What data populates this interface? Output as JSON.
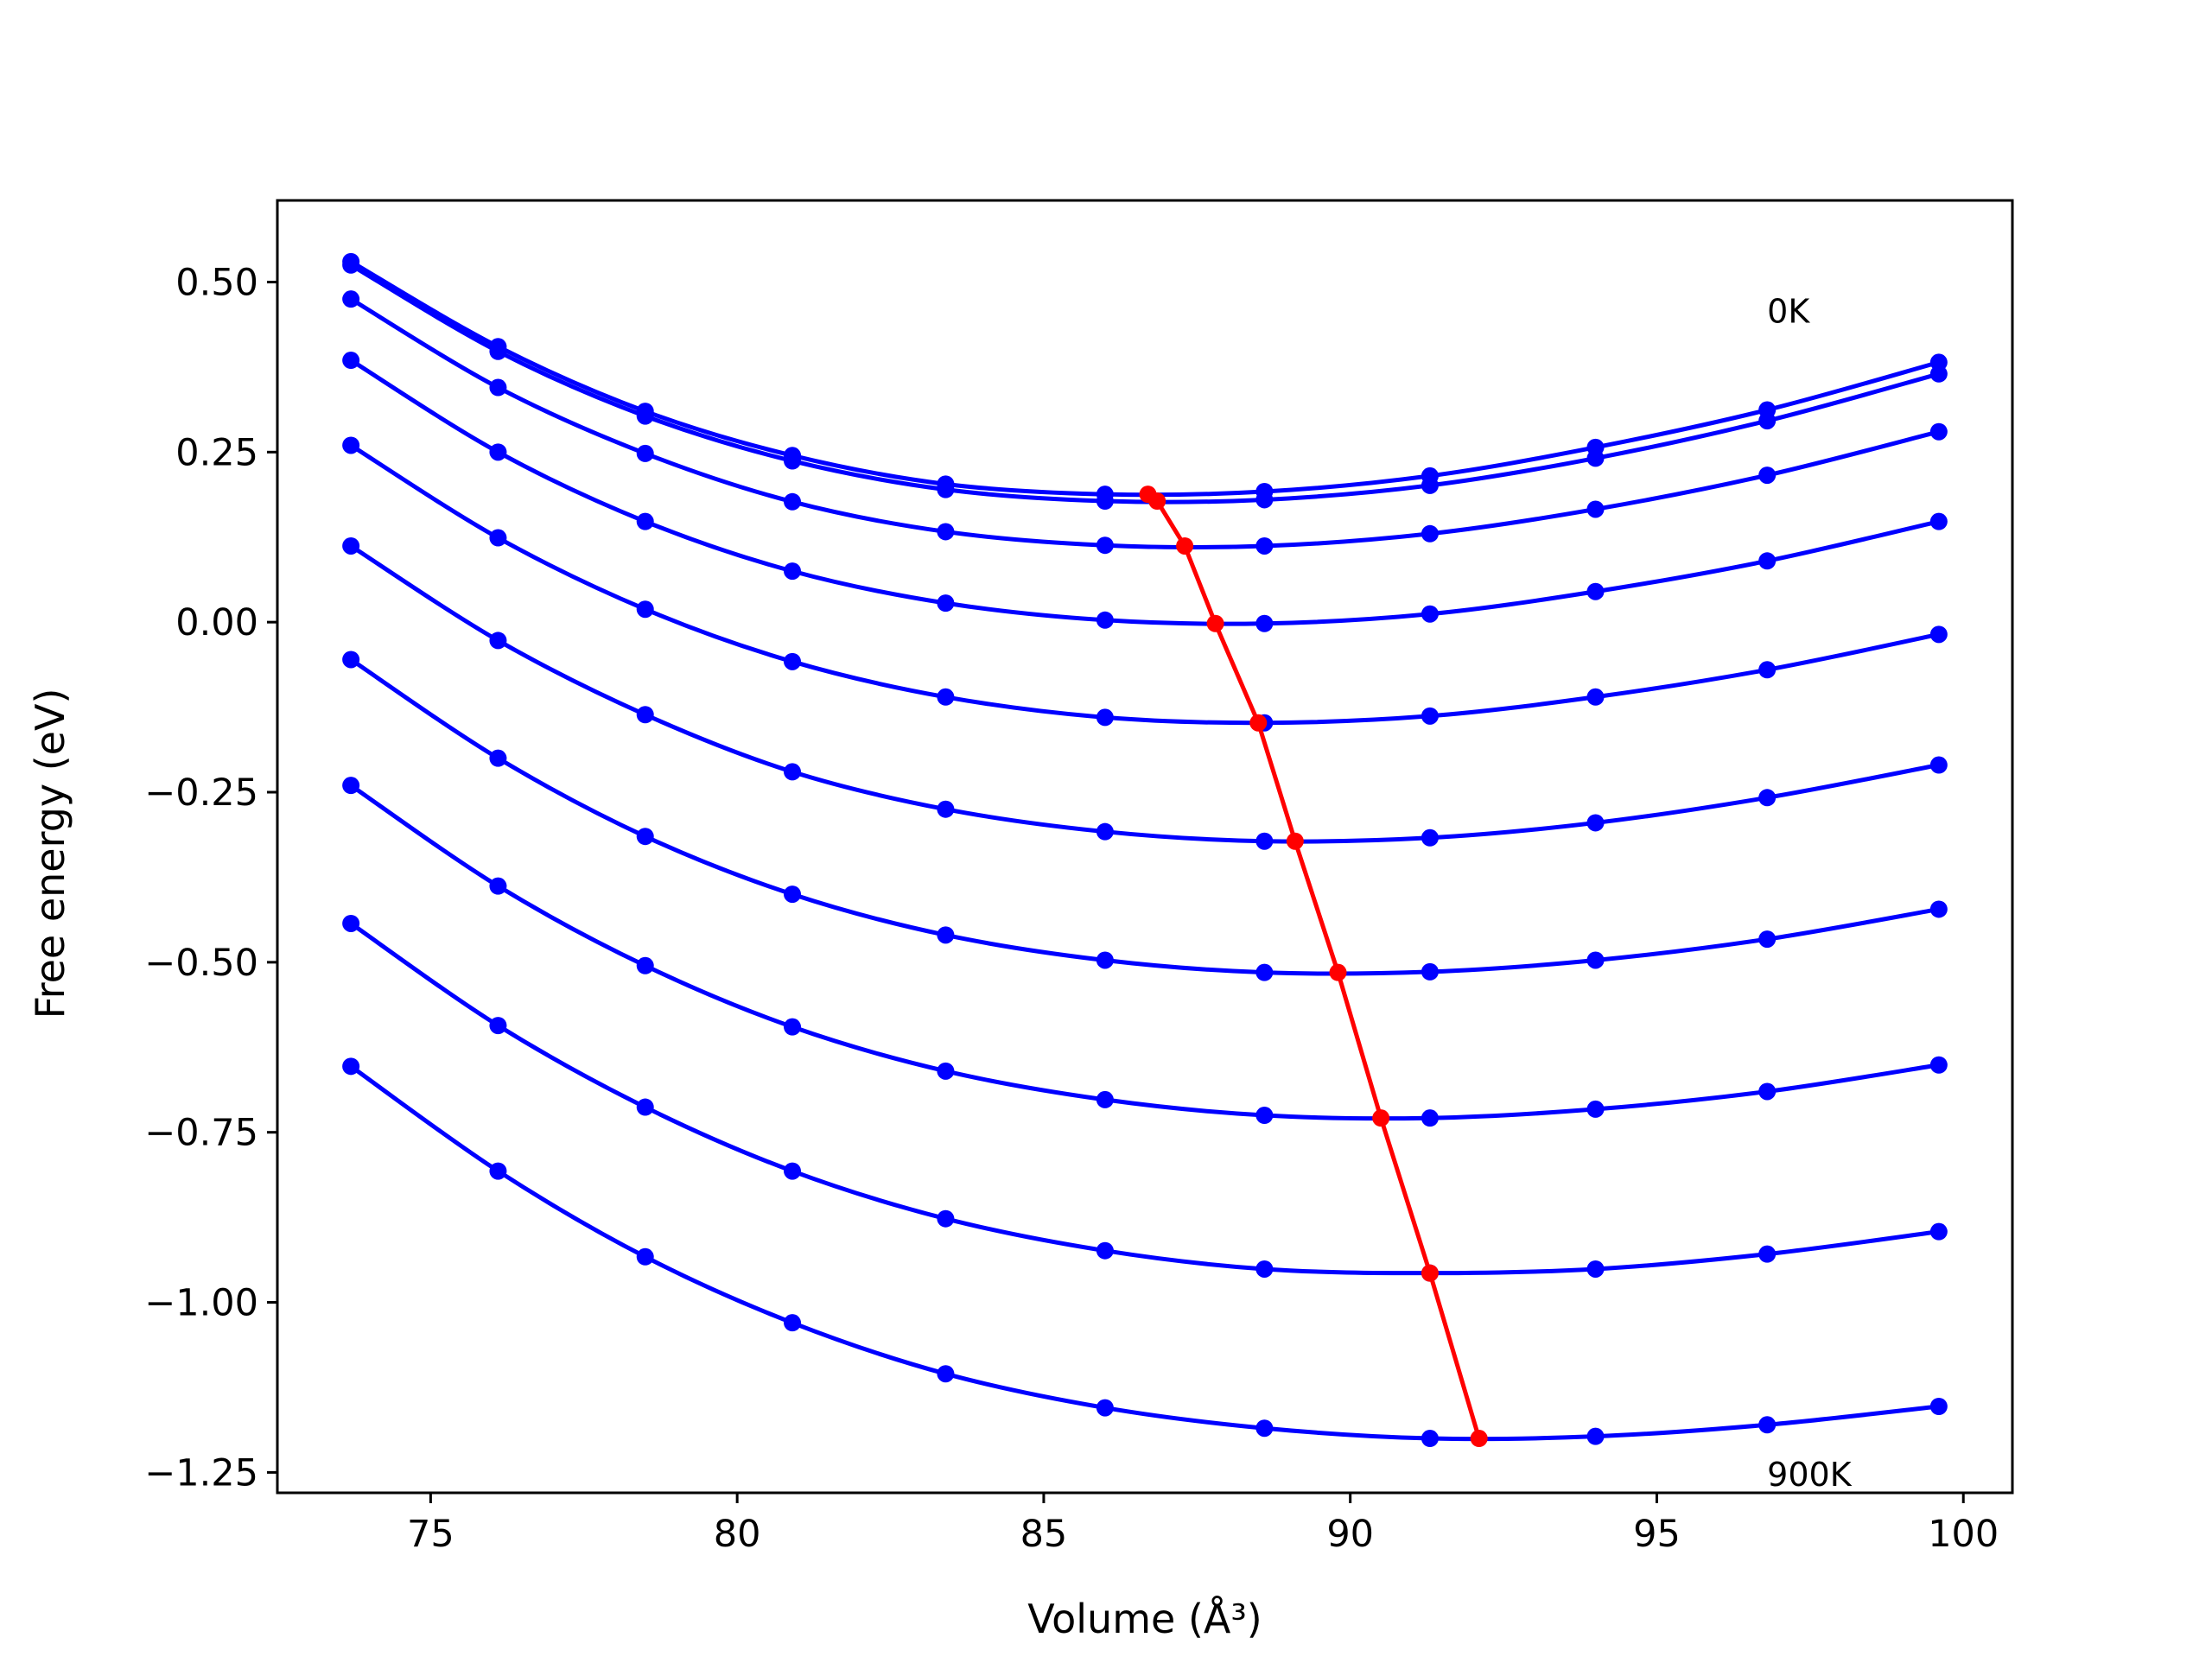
{
  "chart_data": {
    "type": "line",
    "xlabel": "Volume (Å³)",
    "ylabel": "Free energy (eV)",
    "xlim": [
      72.5,
      100.8
    ],
    "ylim": [
      -1.28,
      0.62
    ],
    "xticks": [
      75,
      80,
      85,
      90,
      95,
      100
    ],
    "xtick_labels": [
      "75",
      "80",
      "85",
      "90",
      "95",
      "100"
    ],
    "yticks": [
      0.5,
      0.25,
      0.0,
      -0.25,
      -0.5,
      -0.75,
      -1.0,
      -1.25
    ],
    "ytick_labels": [
      "0.50",
      "0.25",
      "0.00",
      "−0.25",
      "−0.50",
      "−0.75",
      "−1.00",
      "−1.25"
    ],
    "grid": false,
    "annotations": [
      {
        "text": "0K",
        "x": 96.8,
        "y": 0.44
      },
      {
        "text": "900K",
        "x": 96.8,
        "y": -1.27
      }
    ],
    "x": [
      73.7,
      76.1,
      78.5,
      80.9,
      83.4,
      86.0,
      88.6,
      91.3,
      94.0,
      96.8,
      99.6
    ],
    "series": [
      {
        "color": "#0000ff",
        "values": [
          0.53,
          0.405,
          0.31,
          0.245,
          0.203,
          0.188,
          0.192,
          0.215,
          0.257,
          0.312,
          0.382
        ]
      },
      {
        "color": "#0000ff",
        "values": [
          0.525,
          0.398,
          0.303,
          0.237,
          0.195,
          0.178,
          0.18,
          0.201,
          0.241,
          0.296,
          0.365
        ]
      },
      {
        "color": "#0000ff",
        "values": [
          0.475,
          0.345,
          0.248,
          0.177,
          0.133,
          0.113,
          0.112,
          0.13,
          0.166,
          0.216,
          0.28
        ]
      },
      {
        "color": "#0000ff",
        "values": [
          0.385,
          0.25,
          0.148,
          0.075,
          0.028,
          0.003,
          -0.002,
          0.012,
          0.045,
          0.09,
          0.148
        ]
      },
      {
        "color": "#0000ff",
        "values": [
          0.26,
          0.124,
          0.019,
          -0.058,
          -0.11,
          -0.14,
          -0.148,
          -0.138,
          -0.11,
          -0.07,
          -0.018
        ]
      },
      {
        "color": "#0000ff",
        "values": [
          0.112,
          -0.027,
          -0.136,
          -0.22,
          -0.275,
          -0.308,
          -0.322,
          -0.317,
          -0.295,
          -0.258,
          -0.21
        ]
      },
      {
        "color": "#0000ff",
        "values": [
          -0.055,
          -0.2,
          -0.315,
          -0.4,
          -0.46,
          -0.497,
          -0.515,
          -0.514,
          -0.497,
          -0.466,
          -0.422
        ]
      },
      {
        "color": "#0000ff",
        "values": [
          -0.24,
          -0.388,
          -0.505,
          -0.595,
          -0.66,
          -0.702,
          -0.725,
          -0.729,
          -0.716,
          -0.69,
          -0.651
        ]
      },
      {
        "color": "#0000ff",
        "values": [
          -0.443,
          -0.593,
          -0.713,
          -0.807,
          -0.877,
          -0.924,
          -0.951,
          -0.957,
          -0.951,
          -0.929,
          -0.896
        ]
      },
      {
        "color": "#0000ff",
        "values": [
          -0.653,
          -0.807,
          -0.933,
          -1.03,
          -1.105,
          -1.155,
          -1.185,
          -1.2,
          -1.197,
          -1.18,
          -1.153
        ]
      }
    ],
    "minima_line": {
      "color": "#ff0000",
      "x": [
        86.7,
        86.85,
        87.3,
        87.8,
        88.5,
        89.1,
        89.8,
        90.5,
        91.3,
        92.1
      ],
      "y": [
        0.188,
        0.178,
        0.112,
        -0.002,
        -0.148,
        -0.322,
        -0.515,
        -0.729,
        -0.957,
        -1.2
      ]
    }
  }
}
